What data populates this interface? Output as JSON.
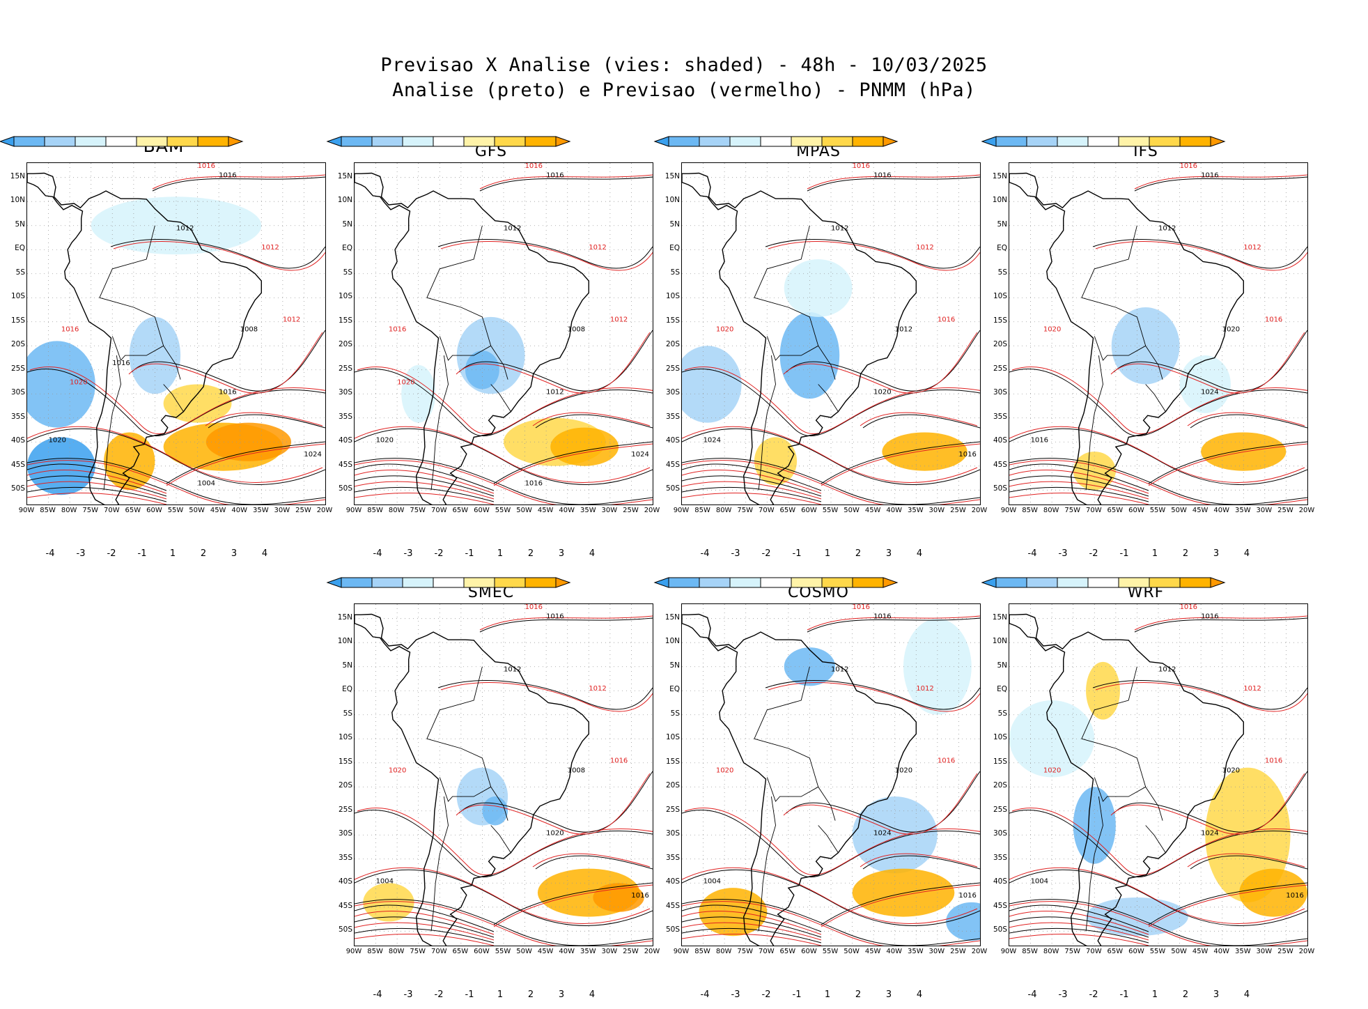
{
  "title": {
    "line1": "Previsao X Analise (vies: shaded) - 48h - 10/03/2025",
    "line2": "Analise (preto) e Previsao (vermelho) - PNMM (hPa)"
  },
  "axes": {
    "lat_labels": [
      "15N",
      "10N",
      "5N",
      "EQ",
      "5S",
      "10S",
      "15S",
      "20S",
      "25S",
      "30S",
      "35S",
      "40S",
      "45S",
      "50S"
    ],
    "lon_labels": [
      "90W",
      "85W",
      "80W",
      "75W",
      "70W",
      "65W",
      "60W",
      "55W",
      "50W",
      "45W",
      "40W",
      "35W",
      "30W",
      "25W",
      "20W"
    ]
  },
  "colorbar": {
    "labels": [
      "-4",
      "-3",
      "-2",
      "-1",
      "1",
      "2",
      "3",
      "4"
    ],
    "colors": [
      "#3aa0ee",
      "#6cb8f3",
      "#a6d3f7",
      "#d6f3fb",
      "#ffffff",
      "#fff3a8",
      "#ffd84a",
      "#ffb300",
      "#ff9900"
    ]
  },
  "colors": {
    "analysis": "#000000",
    "forecast": "#e02020",
    "land": "#ffffff"
  },
  "panels": [
    {
      "name": "BAM",
      "isobars_black": [
        "1016",
        "1012",
        "1008",
        "1016",
        "1020",
        "1024",
        "1004",
        "1016"
      ],
      "isobars_red": [
        "1016",
        "1012",
        "1012",
        "1016",
        "1020"
      ]
    },
    {
      "name": "GFS",
      "isobars_black": [
        "1016",
        "1012",
        "1008",
        "1012",
        "1020",
        "1024",
        "1016"
      ],
      "isobars_red": [
        "1016",
        "1012",
        "1012",
        "1016",
        "1020"
      ]
    },
    {
      "name": "MPAS",
      "isobars_black": [
        "1016",
        "1012",
        "1012",
        "1020",
        "1024",
        "1016"
      ],
      "isobars_red": [
        "1016",
        "1012",
        "1016",
        "1020"
      ]
    },
    {
      "name": "IFS",
      "isobars_black": [
        "1016",
        "1012",
        "1020",
        "1024",
        "1016"
      ],
      "isobars_red": [
        "1016",
        "1012",
        "1016",
        "1020"
      ]
    },
    {
      "name": "SMEC",
      "isobars_black": [
        "1016",
        "1012",
        "1008",
        "1020",
        "1004",
        "1016"
      ],
      "isobars_red": [
        "1016",
        "1012",
        "1016",
        "1020"
      ]
    },
    {
      "name": "COSMO",
      "isobars_black": [
        "1016",
        "1012",
        "1020",
        "1024",
        "1004",
        "1016"
      ],
      "isobars_red": [
        "1016",
        "1012",
        "1016",
        "1020"
      ]
    },
    {
      "name": "WRF",
      "isobars_black": [
        "1016",
        "1012",
        "1020",
        "1024",
        "1004",
        "1016"
      ],
      "isobars_red": [
        "1016",
        "1012",
        "1016",
        "1020"
      ]
    }
  ]
}
